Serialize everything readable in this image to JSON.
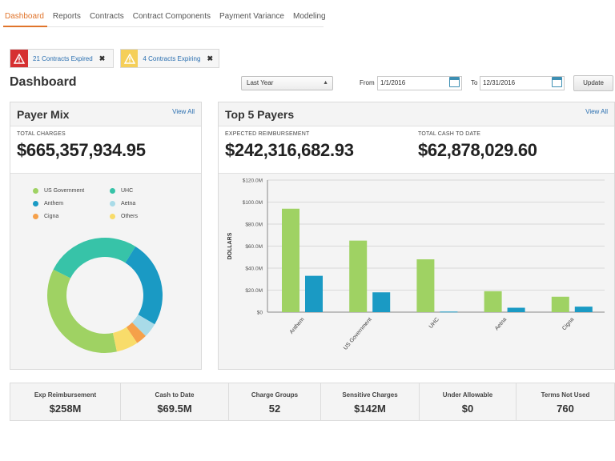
{
  "nav": {
    "tabs": [
      {
        "label": "Dashboard",
        "active": true
      },
      {
        "label": "Reports",
        "active": false
      },
      {
        "label": "Contracts",
        "active": false
      },
      {
        "label": "Contract Components",
        "active": false
      },
      {
        "label": "Payment Variance",
        "active": false
      },
      {
        "label": "Modeling",
        "active": false
      }
    ]
  },
  "alerts": [
    {
      "text": "21 Contracts Expired",
      "level": "error",
      "color": "#d63031",
      "icon": "warning-icon"
    },
    {
      "text": "4 Contracts Expiring",
      "level": "warning",
      "color": "#f5cf59",
      "icon": "warning-icon"
    }
  ],
  "header": {
    "title": "Dashboard",
    "range_select": "Last Year",
    "from_label": "From",
    "from_date": "1/1/2016",
    "to_label": "To",
    "to_date": "12/31/2016",
    "update_label": "Update"
  },
  "payer_mix": {
    "title": "Payer Mix",
    "view_all": "View All",
    "total_label": "TOTAL CHARGES",
    "total_value": "$665,357,934.95",
    "legend": [
      {
        "label": "US Government",
        "color": "#9fd263"
      },
      {
        "label": "UHC",
        "color": "#37c3a8"
      },
      {
        "label": "Anthem",
        "color": "#1a9ac4"
      },
      {
        "label": "Aetna",
        "color": "#a9dbe8"
      },
      {
        "label": "Cigna",
        "color": "#f5a04a"
      },
      {
        "label": "Others",
        "color": "#f8dc6a"
      }
    ]
  },
  "top_payers": {
    "title": "Top 5 Payers",
    "view_all": "View All",
    "expected_label": "EXPECTED REIMBURSEMENT",
    "expected_value": "$242,316,682.93",
    "cash_label": "TOTAL CASH TO DATE",
    "cash_value": "$62,878,029.60"
  },
  "chart_data": [
    {
      "type": "pie",
      "variant": "donut",
      "categories": [
        "US Government",
        "UHC",
        "Anthem",
        "Aetna",
        "Cigna",
        "Others"
      ],
      "values": [
        35,
        26,
        24,
        4,
        3,
        6
      ],
      "colors": [
        "#9fd263",
        "#37c3a8",
        "#1a9ac4",
        "#a9dbe8",
        "#f5a04a",
        "#f8dc6a"
      ],
      "start_angle_deg": 78,
      "legend_position": "top"
    },
    {
      "type": "bar",
      "categories": [
        "Anthem",
        "US Government",
        "UHC",
        "Aetna",
        "Cigna"
      ],
      "series": [
        {
          "values": [
            94,
            65,
            48,
            19,
            14
          ],
          "color": "#9fd263"
        },
        {
          "values": [
            33,
            18,
            0.5,
            4,
            5
          ],
          "color": "#1a9ac4"
        }
      ],
      "ylabel": "DOLLARS",
      "ylim": [
        0,
        120
      ],
      "yticks": [
        "$0",
        "$20.0M",
        "$40.0M",
        "$60.0M",
        "$80.0M",
        "$100.0M",
        "$120.0M"
      ],
      "grid": true
    }
  ],
  "kpis": [
    {
      "label": "Exp Reimbursement",
      "value": "$258M"
    },
    {
      "label": "Cash to Date",
      "value": "$69.5M"
    },
    {
      "label": "Charge Groups",
      "value": "52"
    },
    {
      "label": "Sensitive Charges",
      "value": "$142M"
    },
    {
      "label": "Under Allowable",
      "value": "$0"
    },
    {
      "label": "Terms Not Used",
      "value": "760"
    }
  ]
}
